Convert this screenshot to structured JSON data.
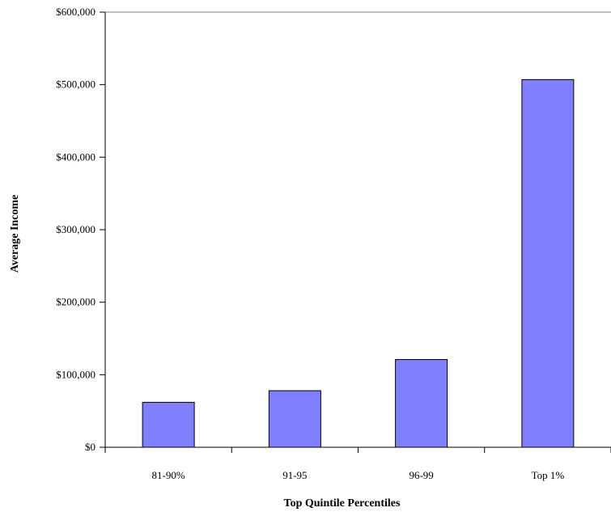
{
  "chart_data": {
    "type": "bar",
    "title": "",
    "xlabel": "Top Quintile Percentiles",
    "ylabel": "Average Income",
    "categories": [
      "81-90%",
      "91-95",
      "96-99",
      "Top 1%"
    ],
    "values": [
      62000,
      78000,
      121000,
      507000
    ],
    "ylim": [
      0,
      600000
    ],
    "yticks": [
      0,
      100000,
      200000,
      300000,
      400000,
      500000,
      600000
    ],
    "ytick_labels": [
      "$0",
      "$100,000",
      "$200,000",
      "$300,000",
      "$400,000",
      "$500,000",
      "$600,000"
    ],
    "grid": false,
    "legend": "none",
    "bar_color": "#8080ff",
    "bar_stroke": "#000000"
  }
}
